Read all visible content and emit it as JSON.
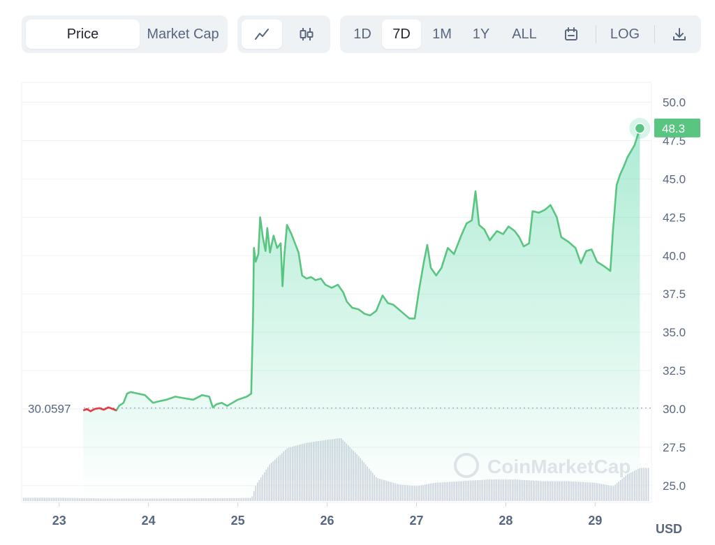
{
  "toolbar": {
    "metric_tabs": [
      {
        "label": "Price",
        "active": true
      },
      {
        "label": "Market Cap",
        "active": false
      }
    ],
    "chart_type_icons": [
      "line-chart-icon",
      "candlestick-icon"
    ],
    "ranges": [
      {
        "label": "1D",
        "active": false
      },
      {
        "label": "7D",
        "active": true
      },
      {
        "label": "1M",
        "active": false
      },
      {
        "label": "1Y",
        "active": false
      },
      {
        "label": "ALL",
        "active": false
      }
    ],
    "calendar_icon": "calendar-icon",
    "log_label": "LOG",
    "download_icon": "download-icon"
  },
  "chart_data": {
    "type": "area",
    "currency_label": "USD",
    "y_ticks": [
      "50.0",
      "47.5",
      "45.0",
      "42.5",
      "40.0",
      "37.5",
      "35.0",
      "32.5",
      "30.0",
      "27.5",
      "25.0"
    ],
    "ylim": [
      23.9,
      51.3
    ],
    "x_ticks": [
      "23",
      "24",
      "25",
      "26",
      "27",
      "28",
      "29"
    ],
    "xlim": [
      22.58,
      29.63
    ],
    "start_value": 30.0597,
    "start_label": "30.0597",
    "current_value": 48.3,
    "current_label": "48.3",
    "watermark": "CoinMarketCap",
    "colors": {
      "up": "#16c784",
      "down": "#ea3943",
      "line": "#5ac481",
      "label_bg": "#5ac481"
    },
    "series": [
      {
        "x": 23.27,
        "y": 29.9
      },
      {
        "x": 23.31,
        "y": 30.0
      },
      {
        "x": 23.35,
        "y": 29.85
      },
      {
        "x": 23.4,
        "y": 30.0
      },
      {
        "x": 23.45,
        "y": 30.05
      },
      {
        "x": 23.5,
        "y": 29.95
      },
      {
        "x": 23.55,
        "y": 30.1
      },
      {
        "x": 23.6,
        "y": 30.0
      },
      {
        "x": 23.64,
        "y": 29.9
      },
      {
        "x": 23.67,
        "y": 30.2
      },
      {
        "x": 23.72,
        "y": 30.4
      },
      {
        "x": 23.76,
        "y": 31.0
      },
      {
        "x": 23.8,
        "y": 31.1
      },
      {
        "x": 23.88,
        "y": 31.0
      },
      {
        "x": 23.96,
        "y": 30.9
      },
      {
        "x": 24.05,
        "y": 30.4
      },
      {
        "x": 24.12,
        "y": 30.5
      },
      {
        "x": 24.2,
        "y": 30.6
      },
      {
        "x": 24.3,
        "y": 30.8
      },
      {
        "x": 24.4,
        "y": 30.7
      },
      {
        "x": 24.5,
        "y": 30.6
      },
      {
        "x": 24.6,
        "y": 30.9
      },
      {
        "x": 24.68,
        "y": 30.8
      },
      {
        "x": 24.72,
        "y": 30.1
      },
      {
        "x": 24.76,
        "y": 30.3
      },
      {
        "x": 24.82,
        "y": 30.4
      },
      {
        "x": 24.88,
        "y": 30.2
      },
      {
        "x": 24.94,
        "y": 30.4
      },
      {
        "x": 25.0,
        "y": 30.6
      },
      {
        "x": 25.1,
        "y": 30.8
      },
      {
        "x": 25.15,
        "y": 31.0
      },
      {
        "x": 25.17,
        "y": 36.0
      },
      {
        "x": 25.18,
        "y": 40.5
      },
      {
        "x": 25.2,
        "y": 39.6
      },
      {
        "x": 25.23,
        "y": 40.1
      },
      {
        "x": 25.25,
        "y": 42.5
      },
      {
        "x": 25.28,
        "y": 41.2
      },
      {
        "x": 25.31,
        "y": 40.3
      },
      {
        "x": 25.33,
        "y": 41.8
      },
      {
        "x": 25.36,
        "y": 40.2
      },
      {
        "x": 25.4,
        "y": 41.3
      },
      {
        "x": 25.44,
        "y": 40.5
      },
      {
        "x": 25.48,
        "y": 40.8
      },
      {
        "x": 25.5,
        "y": 38.0
      },
      {
        "x": 25.52,
        "y": 40.0
      },
      {
        "x": 25.55,
        "y": 42.0
      },
      {
        "x": 25.6,
        "y": 41.4
      },
      {
        "x": 25.64,
        "y": 40.8
      },
      {
        "x": 25.68,
        "y": 40.2
      },
      {
        "x": 25.72,
        "y": 38.7
      },
      {
        "x": 25.77,
        "y": 38.5
      },
      {
        "x": 25.82,
        "y": 38.6
      },
      {
        "x": 25.87,
        "y": 38.4
      },
      {
        "x": 25.93,
        "y": 38.5
      },
      {
        "x": 25.98,
        "y": 38.1
      },
      {
        "x": 26.05,
        "y": 37.9
      },
      {
        "x": 26.12,
        "y": 38.1
      },
      {
        "x": 26.18,
        "y": 37.6
      },
      {
        "x": 26.22,
        "y": 37.0
      },
      {
        "x": 26.28,
        "y": 36.6
      },
      {
        "x": 26.35,
        "y": 36.5
      },
      {
        "x": 26.42,
        "y": 36.2
      },
      {
        "x": 26.48,
        "y": 36.1
      },
      {
        "x": 26.55,
        "y": 36.4
      },
      {
        "x": 26.62,
        "y": 37.4
      },
      {
        "x": 26.68,
        "y": 36.9
      },
      {
        "x": 26.74,
        "y": 36.8
      },
      {
        "x": 26.8,
        "y": 36.5
      },
      {
        "x": 26.86,
        "y": 36.2
      },
      {
        "x": 26.92,
        "y": 35.9
      },
      {
        "x": 26.98,
        "y": 35.9
      },
      {
        "x": 27.03,
        "y": 37.8
      },
      {
        "x": 27.08,
        "y": 39.5
      },
      {
        "x": 27.12,
        "y": 40.7
      },
      {
        "x": 27.16,
        "y": 39.2
      },
      {
        "x": 27.22,
        "y": 38.7
      },
      {
        "x": 27.28,
        "y": 39.2
      },
      {
        "x": 27.35,
        "y": 40.5
      },
      {
        "x": 27.42,
        "y": 40.1
      },
      {
        "x": 27.5,
        "y": 41.3
      },
      {
        "x": 27.56,
        "y": 42.1
      },
      {
        "x": 27.62,
        "y": 42.3
      },
      {
        "x": 27.66,
        "y": 44.2
      },
      {
        "x": 27.7,
        "y": 42.0
      },
      {
        "x": 27.76,
        "y": 41.7
      },
      {
        "x": 27.82,
        "y": 41.0
      },
      {
        "x": 27.9,
        "y": 41.6
      },
      {
        "x": 27.97,
        "y": 41.4
      },
      {
        "x": 28.03,
        "y": 41.9
      },
      {
        "x": 28.1,
        "y": 41.6
      },
      {
        "x": 28.15,
        "y": 41.2
      },
      {
        "x": 28.2,
        "y": 40.6
      },
      {
        "x": 28.26,
        "y": 40.8
      },
      {
        "x": 28.3,
        "y": 42.9
      },
      {
        "x": 28.37,
        "y": 42.8
      },
      {
        "x": 28.44,
        "y": 43.0
      },
      {
        "x": 28.5,
        "y": 43.3
      },
      {
        "x": 28.57,
        "y": 42.5
      },
      {
        "x": 28.62,
        "y": 41.2
      },
      {
        "x": 28.7,
        "y": 40.9
      },
      {
        "x": 28.78,
        "y": 40.5
      },
      {
        "x": 28.84,
        "y": 39.5
      },
      {
        "x": 28.9,
        "y": 40.3
      },
      {
        "x": 28.96,
        "y": 40.4
      },
      {
        "x": 29.02,
        "y": 39.6
      },
      {
        "x": 29.1,
        "y": 39.3
      },
      {
        "x": 29.17,
        "y": 39.0
      },
      {
        "x": 29.2,
        "y": 41.7
      },
      {
        "x": 29.24,
        "y": 44.6
      },
      {
        "x": 29.28,
        "y": 45.3
      },
      {
        "x": 29.32,
        "y": 45.8
      },
      {
        "x": 29.36,
        "y": 46.4
      },
      {
        "x": 29.4,
        "y": 46.8
      },
      {
        "x": 29.44,
        "y": 47.2
      },
      {
        "x": 29.5,
        "y": 48.3
      }
    ],
    "volume": [
      {
        "x": 22.58,
        "v": 2
      },
      {
        "x": 23.0,
        "v": 2
      },
      {
        "x": 23.5,
        "v": 1.5
      },
      {
        "x": 24.0,
        "v": 1.5
      },
      {
        "x": 24.5,
        "v": 1.6
      },
      {
        "x": 25.0,
        "v": 1.8
      },
      {
        "x": 25.15,
        "v": 2
      },
      {
        "x": 25.2,
        "v": 10
      },
      {
        "x": 25.35,
        "v": 22
      },
      {
        "x": 25.55,
        "v": 32
      },
      {
        "x": 25.75,
        "v": 35
      },
      {
        "x": 26.0,
        "v": 37
      },
      {
        "x": 26.15,
        "v": 38
      },
      {
        "x": 26.35,
        "v": 27
      },
      {
        "x": 26.55,
        "v": 14
      },
      {
        "x": 26.8,
        "v": 10
      },
      {
        "x": 27.0,
        "v": 9
      },
      {
        "x": 27.2,
        "v": 11
      },
      {
        "x": 27.5,
        "v": 12
      },
      {
        "x": 27.8,
        "v": 13
      },
      {
        "x": 28.1,
        "v": 13
      },
      {
        "x": 28.4,
        "v": 12
      },
      {
        "x": 28.7,
        "v": 12
      },
      {
        "x": 29.0,
        "v": 11
      },
      {
        "x": 29.2,
        "v": 9
      },
      {
        "x": 29.35,
        "v": 16
      },
      {
        "x": 29.5,
        "v": 20
      },
      {
        "x": 29.63,
        "v": 20
      }
    ]
  }
}
